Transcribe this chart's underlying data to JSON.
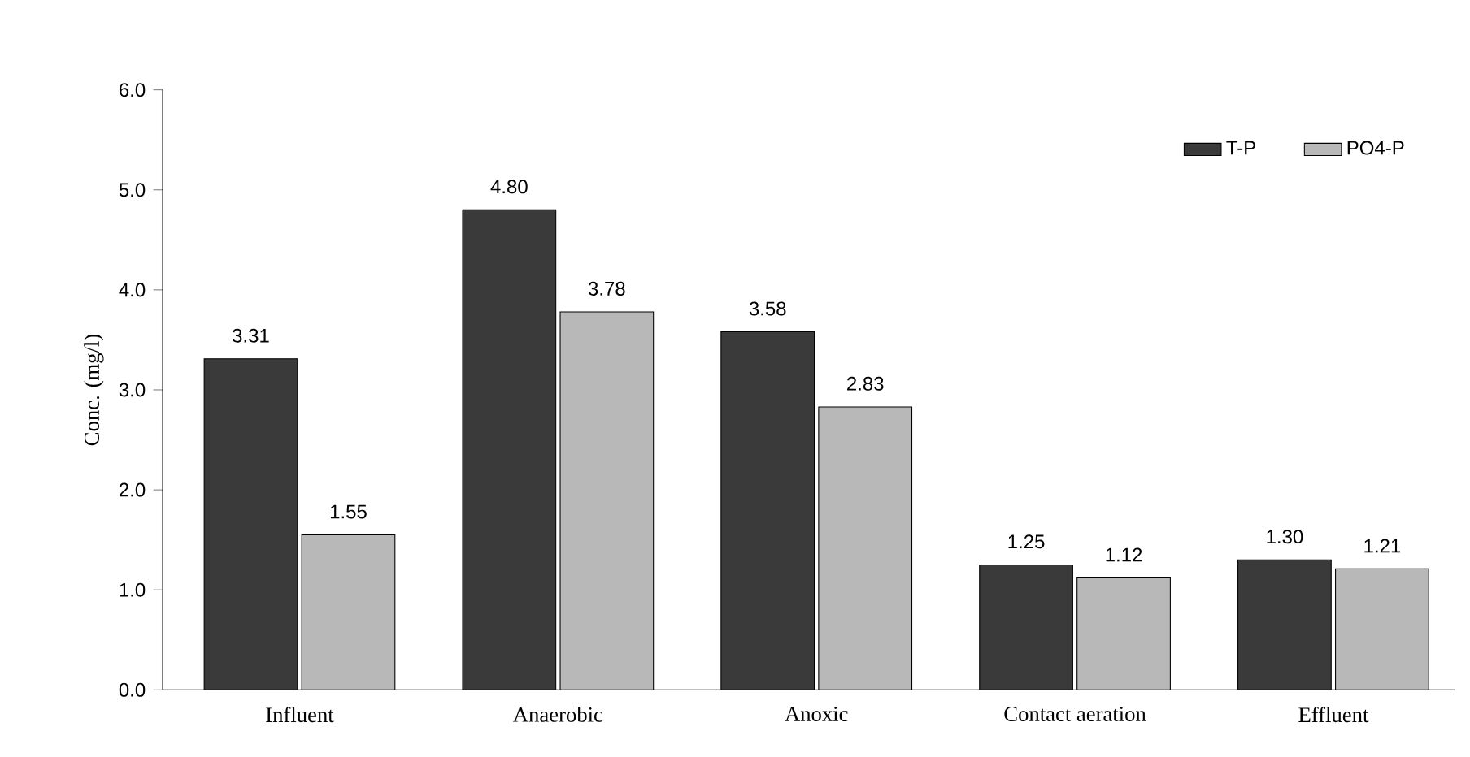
{
  "chart_data": {
    "type": "bar",
    "ylabel": "Conc. (mg/l)",
    "categories": [
      "Influent",
      "Anaerobic",
      "Anoxic",
      "Contact aeration",
      "Effluent"
    ],
    "series": [
      {
        "name": "T-P",
        "color": "#3a3a3a",
        "values": [
          3.31,
          4.8,
          3.58,
          1.25,
          1.3
        ],
        "value_labels": [
          "3.31",
          "4.80",
          "3.58",
          "1.25",
          "1.30"
        ]
      },
      {
        "name": "PO4-P",
        "color": "#b8b8b8",
        "values": [
          1.55,
          3.78,
          2.83,
          1.12,
          1.21
        ],
        "value_labels": [
          "1.55",
          "3.78",
          "2.83",
          "1.12",
          "1.21"
        ]
      }
    ],
    "ylim": [
      0,
      6
    ],
    "yticks": [
      {
        "value": 0,
        "label": "0.0"
      },
      {
        "value": 1,
        "label": "1.0"
      },
      {
        "value": 2,
        "label": "2.0"
      },
      {
        "value": 3,
        "label": "3.0"
      },
      {
        "value": 4,
        "label": "4.0"
      },
      {
        "value": 5,
        "label": "5.0"
      },
      {
        "value": 6,
        "label": "6.0"
      }
    ],
    "grid": false,
    "legend": "top right"
  }
}
